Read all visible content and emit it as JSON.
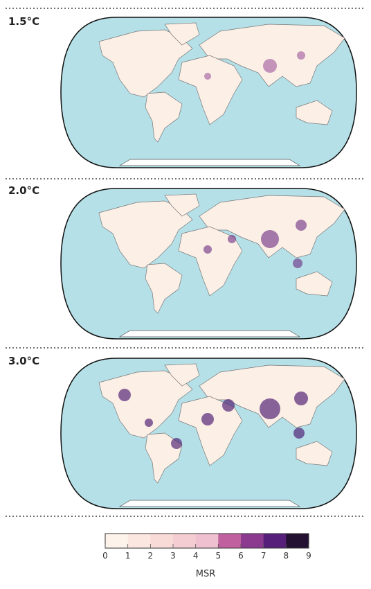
{
  "panels": [
    {
      "title": "1.5°C"
    },
    {
      "title": "2.0°C"
    },
    {
      "title": "3.0°C"
    }
  ],
  "colorbar": {
    "label": "MSR",
    "lim": [
      0,
      9
    ],
    "ticks": [
      0,
      1,
      2,
      3,
      4,
      5,
      6,
      7,
      8,
      9
    ],
    "colors": [
      "#fdf3ea",
      "#fbe7df",
      "#f8dad6",
      "#f4cdd2",
      "#efc0cf",
      "#c0609f",
      "#8c3a90",
      "#56207a",
      "#241030"
    ]
  }
}
